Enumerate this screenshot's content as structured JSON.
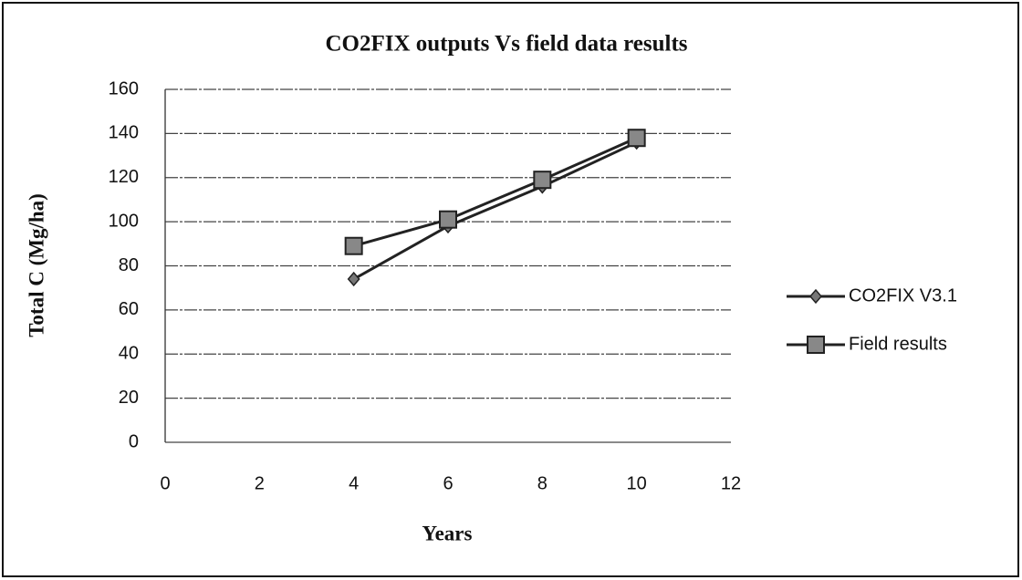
{
  "chart_data": {
    "type": "line",
    "title": "CO2FIX outputs Vs field data results",
    "x_label": "Years",
    "y_label": "Total C (Mg/ha)",
    "xlim": [
      0,
      12
    ],
    "xticks": [
      0,
      2,
      4,
      6,
      8,
      10,
      12
    ],
    "ylim": [
      0,
      160
    ],
    "yticks": [
      0,
      20,
      40,
      60,
      80,
      100,
      120,
      140,
      160
    ],
    "grid": true,
    "legend": "right",
    "series": [
      {
        "name": "CO2FIX V3.1",
        "color": "#222222",
        "marker": "diamond",
        "x": [
          4,
          6,
          8,
          10
        ],
        "values": [
          74,
          98,
          116,
          136
        ]
      },
      {
        "name": "Field results",
        "color": "#222222",
        "marker": "square",
        "x": [
          4,
          6,
          8,
          10
        ],
        "values": [
          89,
          101,
          119,
          138
        ]
      }
    ]
  }
}
